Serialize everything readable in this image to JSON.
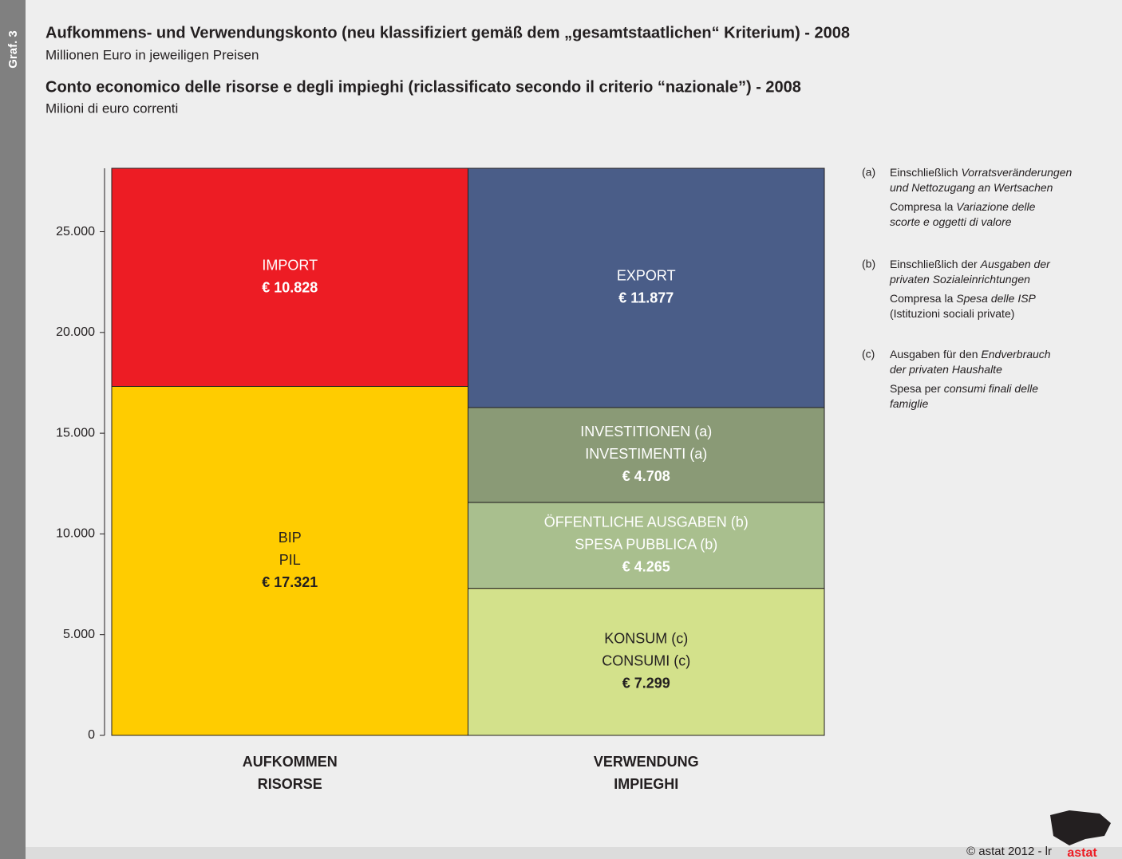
{
  "side_label": "Graf. 3",
  "footer": "© astat 2012 - lr",
  "logo": "astat",
  "notes": [
    {
      "marker": "(a)",
      "blocks": [
        [
          [
            [
              "Einschließlich ",
              false
            ],
            [
              "Vorratsveränderungen",
              true
            ]
          ],
          [
            [
              "und Nettozugang an Wertsachen",
              true
            ]
          ]
        ],
        [
          [
            [
              "Compresa la ",
              false
            ],
            [
              "Variazione delle",
              true
            ]
          ],
          [
            [
              "scorte e oggetti di valore",
              true
            ]
          ]
        ]
      ]
    },
    {
      "marker": "(b)",
      "blocks": [
        [
          [
            [
              "Einschließlich der ",
              false
            ],
            [
              "Ausgaben der",
              true
            ]
          ],
          [
            [
              "privaten Sozialeinrichtungen",
              true
            ]
          ]
        ],
        [
          [
            [
              "Compresa la ",
              false
            ],
            [
              "Spesa delle ISP",
              true
            ]
          ],
          [
            [
              "(Istituzioni sociali private)",
              false
            ]
          ]
        ]
      ]
    },
    {
      "marker": "(c)",
      "blocks": [
        [
          [
            [
              "Ausgaben für den ",
              false
            ],
            [
              "Endverbrauch",
              true
            ]
          ],
          [
            [
              "der privaten Haushalte",
              true
            ]
          ]
        ],
        [
          [
            [
              "Spesa per ",
              false
            ],
            [
              "consumi finali delle",
              true
            ]
          ],
          [
            [
              "famiglie",
              true
            ]
          ]
        ]
      ]
    }
  ],
  "chart_data": {
    "type": "stacked_bar",
    "title": "Aufkommens- und Verwendungskonto (neu klassifiziert gemäß dem „gesamtstaatlichen“ Kriterium) - 2008",
    "subtitle": "Millionen Euro in jeweiligen Preisen",
    "title2": "Conto economico delle risorse e degli impieghi (riclassificato secondo il criterio “nazionale”) - 2008",
    "subtitle2": "Milioni di euro correnti",
    "categories": [
      [
        "AUFKOMMEN",
        "RISORSE"
      ],
      [
        "VERWENDUNG",
        "IMPIEGHI"
      ]
    ],
    "series": [
      {
        "name": [
          "BIP",
          "PIL"
        ],
        "color": "#ffcc00",
        "label_color": "#231f20",
        "values": [
          17321,
          null
        ],
        "value_labels": [
          "€ 17.321",
          null
        ]
      },
      {
        "name": [
          "IMPORT"
        ],
        "color": "#ed1c24",
        "label_color": "#ffffff",
        "values": [
          10828,
          null
        ],
        "value_labels": [
          "€ 10.828",
          null
        ]
      },
      {
        "name": [
          "KONSUM (c)",
          "CONSUMI (c)"
        ],
        "color": "#d3e18b",
        "label_color": "#231f20",
        "values": [
          null,
          7299
        ],
        "value_labels": [
          null,
          "€ 7.299"
        ]
      },
      {
        "name": [
          "ÖFFENTLICHE AUSGABEN (b)",
          "SPESA PUBBLICA (b)"
        ],
        "color": "#a9bf8e",
        "label_color": "#ffffff",
        "values": [
          null,
          4265
        ],
        "value_labels": [
          null,
          "€ 4.265"
        ]
      },
      {
        "name": [
          "INVESTITIONEN (a)",
          "INVESTIMENTI (a)"
        ],
        "color": "#8a9a76",
        "label_color": "#ffffff",
        "values": [
          null,
          4708
        ],
        "value_labels": [
          null,
          "€ 4.708"
        ]
      },
      {
        "name": [
          "EXPORT"
        ],
        "color": "#4a5d88",
        "label_color": "#ffffff",
        "values": [
          null,
          11877
        ],
        "value_labels": [
          null,
          "€ 11.877"
        ]
      }
    ],
    "ylim": [
      0,
      28149
    ],
    "yticks": [
      0,
      {
        "value": 5000,
        "label": "5.000"
      },
      {
        "value": 10000,
        "label": "10.000"
      },
      {
        "value": 15000,
        "label": "15.000"
      },
      {
        "value": 20000,
        "label": "20.000"
      },
      {
        "value": 25000,
        "label": "25.000"
      }
    ]
  }
}
